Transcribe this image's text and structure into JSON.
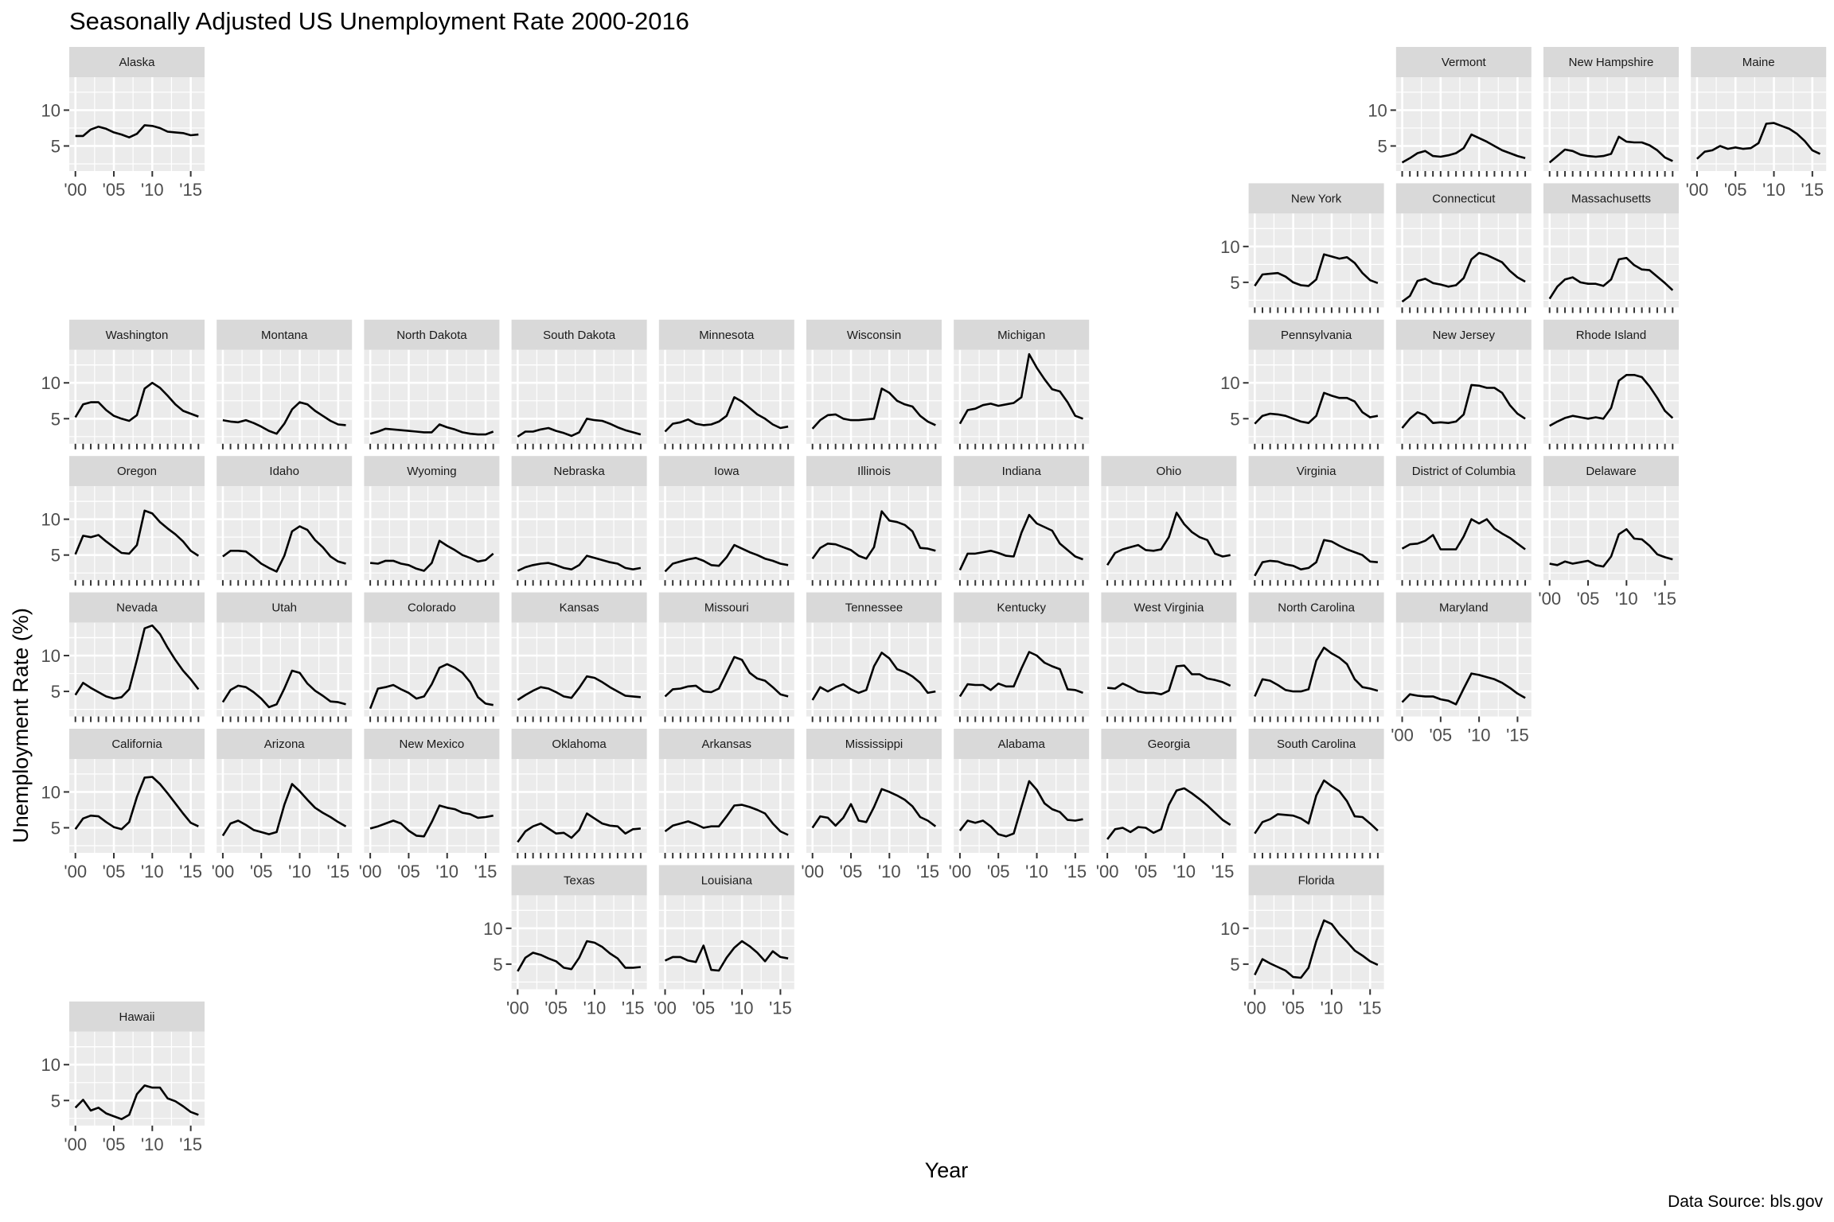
{
  "chart_data": {
    "type": "line",
    "title": "Seasonally Adjusted US Unemployment Rate 2000-2016",
    "xlabel": "Year",
    "ylabel": "Unemployment Rate (%)",
    "caption": "Data Source: bls.gov",
    "x": [
      2000,
      2001,
      2002,
      2003,
      2004,
      2005,
      2006,
      2007,
      2008,
      2009,
      2010,
      2011,
      2012,
      2013,
      2014,
      2015,
      2016
    ],
    "xlim": [
      1999.2,
      2016.8
    ],
    "ylim": [
      1.5,
      14.6
    ],
    "y_ticks": [
      5,
      10
    ],
    "y_tick_labels": [
      "5",
      "10"
    ],
    "x_ticks": [
      2000,
      2005,
      2010,
      2015
    ],
    "x_tick_labels": [
      "'00",
      "'05",
      "'10",
      "'15"
    ],
    "grid": true,
    "line_color": "#000000",
    "panel_background": "#ebebeb",
    "strip_background": "#d9d9d9",
    "series": [
      {
        "name": "Alaska",
        "row": 0,
        "col": 0,
        "values": [
          6.4,
          6.4,
          7.3,
          7.7,
          7.4,
          6.9,
          6.6,
          6.2,
          6.7,
          7.9,
          7.8,
          7.5,
          7.0,
          6.9,
          6.8,
          6.5,
          6.6
        ]
      },
      {
        "name": "Vermont",
        "row": 0,
        "col": 9,
        "values": [
          2.7,
          3.3,
          4.0,
          4.3,
          3.6,
          3.5,
          3.7,
          4.0,
          4.7,
          6.6,
          6.1,
          5.6,
          5.0,
          4.4,
          4.0,
          3.6,
          3.3
        ]
      },
      {
        "name": "New Hampshire",
        "row": 0,
        "col": 10,
        "values": [
          2.7,
          3.6,
          4.5,
          4.3,
          3.8,
          3.6,
          3.5,
          3.6,
          3.9,
          6.3,
          5.6,
          5.5,
          5.5,
          5.1,
          4.4,
          3.4,
          2.9
        ]
      },
      {
        "name": "Maine",
        "row": 0,
        "col": 11,
        "values": [
          3.2,
          4.2,
          4.4,
          5.0,
          4.6,
          4.8,
          4.6,
          4.7,
          5.4,
          8.1,
          8.2,
          7.8,
          7.4,
          6.7,
          5.7,
          4.4,
          3.9
        ]
      },
      {
        "name": "New York",
        "row": 1,
        "col": 8,
        "values": [
          4.5,
          6.1,
          6.2,
          6.3,
          5.8,
          5.0,
          4.6,
          4.5,
          5.4,
          8.9,
          8.6,
          8.3,
          8.5,
          7.7,
          6.3,
          5.3,
          4.9
        ]
      },
      {
        "name": "Connecticut",
        "row": 1,
        "col": 9,
        "values": [
          2.3,
          3.1,
          5.2,
          5.5,
          4.9,
          4.7,
          4.4,
          4.6,
          5.6,
          8.2,
          9.1,
          8.8,
          8.3,
          7.8,
          6.6,
          5.7,
          5.1
        ]
      },
      {
        "name": "Massachusetts",
        "row": 1,
        "col": 10,
        "values": [
          2.7,
          4.4,
          5.4,
          5.7,
          5.0,
          4.8,
          4.8,
          4.5,
          5.4,
          8.2,
          8.4,
          7.4,
          6.8,
          6.7,
          5.8,
          4.9,
          3.9
        ]
      },
      {
        "name": "Washington",
        "row": 2,
        "col": 0,
        "values": [
          5.2,
          7.0,
          7.3,
          7.3,
          6.2,
          5.4,
          5.0,
          4.7,
          5.5,
          9.2,
          10.0,
          9.3,
          8.2,
          7.0,
          6.1,
          5.7,
          5.3
        ]
      },
      {
        "name": "Montana",
        "row": 2,
        "col": 1,
        "values": [
          4.8,
          4.6,
          4.5,
          4.8,
          4.4,
          3.9,
          3.3,
          2.9,
          4.3,
          6.3,
          7.3,
          7.0,
          6.1,
          5.4,
          4.7,
          4.2,
          4.1
        ]
      },
      {
        "name": "North Dakota",
        "row": 2,
        "col": 2,
        "values": [
          2.9,
          3.2,
          3.6,
          3.5,
          3.4,
          3.3,
          3.2,
          3.1,
          3.1,
          4.2,
          3.8,
          3.5,
          3.1,
          2.9,
          2.8,
          2.8,
          3.2
        ]
      },
      {
        "name": "South Dakota",
        "row": 2,
        "col": 3,
        "values": [
          2.5,
          3.2,
          3.2,
          3.5,
          3.7,
          3.3,
          3.0,
          2.6,
          3.1,
          5.0,
          4.8,
          4.7,
          4.3,
          3.8,
          3.4,
          3.1,
          2.8
        ]
      },
      {
        "name": "Minnesota",
        "row": 2,
        "col": 4,
        "values": [
          3.2,
          4.3,
          4.5,
          4.9,
          4.3,
          4.1,
          4.2,
          4.6,
          5.4,
          8.0,
          7.4,
          6.5,
          5.6,
          5.0,
          4.2,
          3.7,
          3.9
        ]
      },
      {
        "name": "Wisconsin",
        "row": 2,
        "col": 5,
        "values": [
          3.6,
          4.8,
          5.5,
          5.6,
          5.0,
          4.8,
          4.8,
          4.9,
          5.0,
          9.2,
          8.6,
          7.5,
          7.0,
          6.7,
          5.4,
          4.6,
          4.1
        ]
      },
      {
        "name": "Michigan",
        "row": 2,
        "col": 6,
        "values": [
          4.3,
          6.2,
          6.4,
          6.9,
          7.1,
          6.8,
          7.0,
          7.2,
          8.0,
          14.0,
          12.1,
          10.5,
          9.1,
          8.8,
          7.3,
          5.4,
          5.0
        ]
      },
      {
        "name": "Pennsylvania",
        "row": 2,
        "col": 8,
        "values": [
          4.3,
          5.4,
          5.7,
          5.6,
          5.4,
          5.0,
          4.6,
          4.4,
          5.4,
          8.6,
          8.2,
          7.9,
          7.9,
          7.4,
          5.9,
          5.2,
          5.4
        ]
      },
      {
        "name": "New Jersey",
        "row": 2,
        "col": 9,
        "values": [
          3.7,
          5.0,
          5.9,
          5.5,
          4.4,
          4.5,
          4.4,
          4.6,
          5.6,
          9.7,
          9.6,
          9.3,
          9.3,
          8.6,
          6.9,
          5.7,
          5.0
        ]
      },
      {
        "name": "Rhode Island",
        "row": 2,
        "col": 10,
        "values": [
          4.0,
          4.6,
          5.1,
          5.4,
          5.2,
          5.0,
          5.2,
          5.0,
          6.5,
          10.3,
          11.1,
          11.1,
          10.8,
          9.5,
          7.9,
          6.1,
          5.1
        ]
      },
      {
        "name": "Oregon",
        "row": 3,
        "col": 0,
        "values": [
          5.1,
          7.7,
          7.5,
          7.8,
          6.9,
          6.1,
          5.3,
          5.2,
          6.4,
          11.2,
          10.8,
          9.6,
          8.7,
          7.9,
          6.9,
          5.6,
          4.9
        ]
      },
      {
        "name": "Idaho",
        "row": 3,
        "col": 1,
        "values": [
          4.8,
          5.6,
          5.6,
          5.5,
          4.7,
          3.8,
          3.2,
          2.7,
          4.9,
          8.3,
          9.0,
          8.5,
          7.1,
          6.1,
          4.8,
          4.1,
          3.8
        ]
      },
      {
        "name": "Wyoming",
        "row": 3,
        "col": 2,
        "values": [
          3.9,
          3.8,
          4.2,
          4.2,
          3.8,
          3.6,
          3.1,
          2.8,
          3.9,
          7.0,
          6.3,
          5.7,
          5.0,
          4.6,
          4.1,
          4.3,
          5.2
        ]
      },
      {
        "name": "Nebraska",
        "row": 3,
        "col": 3,
        "values": [
          2.8,
          3.3,
          3.6,
          3.8,
          3.9,
          3.6,
          3.2,
          3.0,
          3.6,
          4.9,
          4.6,
          4.3,
          4.0,
          3.8,
          3.2,
          3.0,
          3.2
        ]
      },
      {
        "name": "Iowa",
        "row": 3,
        "col": 4,
        "values": [
          2.7,
          3.8,
          4.1,
          4.4,
          4.6,
          4.2,
          3.6,
          3.5,
          4.7,
          6.4,
          5.9,
          5.4,
          5.0,
          4.5,
          4.2,
          3.8,
          3.6
        ]
      },
      {
        "name": "Illinois",
        "row": 3,
        "col": 5,
        "values": [
          4.5,
          6.0,
          6.6,
          6.5,
          6.1,
          5.7,
          4.9,
          4.5,
          6.1,
          11.1,
          9.8,
          9.6,
          9.2,
          8.3,
          6.0,
          5.9,
          5.6
        ]
      },
      {
        "name": "Indiana",
        "row": 3,
        "col": 6,
        "values": [
          2.9,
          5.2,
          5.2,
          5.4,
          5.6,
          5.3,
          4.9,
          4.8,
          8.1,
          10.6,
          9.4,
          8.9,
          8.4,
          6.6,
          5.7,
          4.8,
          4.4
        ]
      },
      {
        "name": "Ohio",
        "row": 3,
        "col": 7,
        "values": [
          3.6,
          5.3,
          5.8,
          6.1,
          6.4,
          5.7,
          5.6,
          5.8,
          7.5,
          10.9,
          9.3,
          8.2,
          7.5,
          7.1,
          5.2,
          4.8,
          5.0
        ]
      },
      {
        "name": "Virginia",
        "row": 3,
        "col": 8,
        "values": [
          2.1,
          4.0,
          4.2,
          4.1,
          3.7,
          3.5,
          3.0,
          3.2,
          4.0,
          7.1,
          6.9,
          6.3,
          5.8,
          5.4,
          5.0,
          4.1,
          4.0
        ]
      },
      {
        "name": "District of Columbia",
        "row": 3,
        "col": 9,
        "values": [
          5.9,
          6.5,
          6.6,
          7.0,
          7.8,
          5.8,
          5.8,
          5.8,
          7.6,
          10.0,
          9.4,
          10.0,
          8.7,
          8.0,
          7.4,
          6.6,
          5.8
        ]
      },
      {
        "name": "Delaware",
        "row": 3,
        "col": 10,
        "values": [
          3.8,
          3.6,
          4.1,
          3.8,
          4.0,
          4.2,
          3.6,
          3.4,
          4.8,
          7.9,
          8.6,
          7.3,
          7.2,
          6.3,
          5.1,
          4.7,
          4.4
        ]
      },
      {
        "name": "Nevada",
        "row": 4,
        "col": 0,
        "values": [
          4.5,
          6.2,
          5.5,
          4.9,
          4.3,
          4.0,
          4.2,
          5.3,
          9.4,
          13.8,
          14.2,
          13.0,
          11.1,
          9.4,
          7.9,
          6.7,
          5.3
        ]
      },
      {
        "name": "Utah",
        "row": 4,
        "col": 1,
        "values": [
          3.5,
          5.2,
          5.8,
          5.6,
          4.9,
          4.0,
          2.8,
          3.2,
          5.4,
          7.9,
          7.6,
          6.1,
          5.1,
          4.4,
          3.6,
          3.5,
          3.2
        ]
      },
      {
        "name": "Colorado",
        "row": 4,
        "col": 2,
        "values": [
          2.6,
          5.4,
          5.6,
          5.9,
          5.3,
          4.8,
          4.0,
          4.3,
          6.0,
          8.3,
          8.8,
          8.3,
          7.6,
          6.3,
          4.2,
          3.3,
          3.1
        ]
      },
      {
        "name": "Kansas",
        "row": 4,
        "col": 3,
        "values": [
          3.8,
          4.5,
          5.1,
          5.6,
          5.4,
          4.9,
          4.3,
          4.1,
          5.5,
          7.1,
          6.9,
          6.3,
          5.6,
          5.0,
          4.4,
          4.3,
          4.2
        ]
      },
      {
        "name": "Missouri",
        "row": 4,
        "col": 4,
        "values": [
          4.3,
          5.3,
          5.4,
          5.7,
          5.8,
          5.0,
          4.9,
          5.4,
          7.6,
          9.8,
          9.4,
          7.6,
          6.8,
          6.5,
          5.6,
          4.6,
          4.3
        ]
      },
      {
        "name": "Tennessee",
        "row": 4,
        "col": 5,
        "values": [
          3.8,
          5.6,
          5.0,
          5.6,
          6.0,
          5.3,
          4.8,
          5.2,
          8.5,
          10.4,
          9.6,
          8.1,
          7.7,
          7.1,
          6.2,
          4.8,
          5.0
        ]
      },
      {
        "name": "Kentucky",
        "row": 4,
        "col": 6,
        "values": [
          4.3,
          6.0,
          5.9,
          5.9,
          5.2,
          6.1,
          5.7,
          5.7,
          8.2,
          10.5,
          10.0,
          9.0,
          8.5,
          8.1,
          5.3,
          5.2,
          4.8
        ]
      },
      {
        "name": "West Virginia",
        "row": 4,
        "col": 7,
        "values": [
          5.5,
          5.4,
          6.1,
          5.6,
          5.0,
          4.8,
          4.8,
          4.6,
          5.1,
          8.5,
          8.6,
          7.4,
          7.4,
          6.8,
          6.6,
          6.3,
          5.8
        ]
      },
      {
        "name": "North Carolina",
        "row": 4,
        "col": 8,
        "values": [
          4.3,
          6.7,
          6.5,
          5.9,
          5.2,
          5.0,
          5.0,
          5.3,
          9.3,
          11.1,
          10.3,
          9.7,
          8.8,
          6.7,
          5.6,
          5.4,
          5.1
        ]
      },
      {
        "name": "Maryland",
        "row": 4,
        "col": 9,
        "values": [
          3.5,
          4.6,
          4.4,
          4.3,
          4.3,
          3.9,
          3.7,
          3.2,
          5.4,
          7.5,
          7.3,
          7.0,
          6.7,
          6.2,
          5.5,
          4.7,
          4.1
        ]
      },
      {
        "name": "California",
        "row": 5,
        "col": 0,
        "values": [
          4.8,
          6.3,
          6.7,
          6.6,
          5.8,
          5.1,
          4.8,
          5.8,
          9.3,
          12.0,
          12.1,
          11.1,
          9.8,
          8.4,
          7.0,
          5.7,
          5.2
        ]
      },
      {
        "name": "Arizona",
        "row": 5,
        "col": 1,
        "values": [
          3.9,
          5.6,
          6.0,
          5.4,
          4.7,
          4.4,
          4.1,
          4.4,
          8.2,
          11.1,
          10.1,
          8.9,
          7.8,
          7.1,
          6.5,
          5.8,
          5.2
        ]
      },
      {
        "name": "New Mexico",
        "row": 5,
        "col": 2,
        "values": [
          4.9,
          5.2,
          5.6,
          6.0,
          5.6,
          4.6,
          3.9,
          3.8,
          5.8,
          8.1,
          7.8,
          7.6,
          7.1,
          6.9,
          6.4,
          6.5,
          6.7
        ]
      },
      {
        "name": "Oklahoma",
        "row": 5,
        "col": 3,
        "values": [
          3.0,
          4.5,
          5.2,
          5.6,
          4.9,
          4.2,
          4.3,
          3.6,
          4.7,
          7.0,
          6.3,
          5.6,
          5.3,
          5.2,
          4.2,
          4.8,
          4.9
        ]
      },
      {
        "name": "Arkansas",
        "row": 5,
        "col": 4,
        "values": [
          4.5,
          5.3,
          5.6,
          5.9,
          5.5,
          5.0,
          5.2,
          5.2,
          6.6,
          8.1,
          8.2,
          7.9,
          7.5,
          7.0,
          5.6,
          4.5,
          4.0
        ]
      },
      {
        "name": "Mississippi",
        "row": 5,
        "col": 5,
        "values": [
          5.0,
          6.6,
          6.4,
          5.3,
          6.4,
          8.3,
          6.0,
          5.8,
          7.9,
          10.4,
          10.0,
          9.5,
          8.9,
          8.0,
          6.5,
          6.0,
          5.2
        ]
      },
      {
        "name": "Alabama",
        "row": 5,
        "col": 6,
        "values": [
          4.6,
          6.0,
          5.7,
          6.0,
          5.2,
          4.1,
          3.8,
          4.2,
          7.9,
          11.5,
          10.3,
          8.4,
          7.6,
          7.2,
          6.1,
          6.0,
          6.2
        ]
      },
      {
        "name": "Georgia",
        "row": 5,
        "col": 7,
        "values": [
          3.4,
          4.8,
          5.0,
          4.4,
          5.1,
          5.0,
          4.3,
          4.8,
          8.2,
          10.2,
          10.5,
          9.8,
          9.0,
          8.1,
          7.1,
          6.1,
          5.4
        ]
      },
      {
        "name": "South Carolina",
        "row": 5,
        "col": 8,
        "values": [
          4.2,
          5.8,
          6.2,
          6.9,
          6.8,
          6.7,
          6.3,
          5.6,
          9.5,
          11.6,
          10.8,
          10.1,
          8.7,
          6.6,
          6.5,
          5.6,
          4.6
        ]
      },
      {
        "name": "Texas",
        "row": 6,
        "col": 3,
        "values": [
          4.0,
          5.9,
          6.6,
          6.3,
          5.8,
          5.4,
          4.5,
          4.3,
          5.9,
          8.2,
          8.0,
          7.4,
          6.5,
          5.8,
          4.5,
          4.5,
          4.6
        ]
      },
      {
        "name": "Louisiana",
        "row": 6,
        "col": 4,
        "values": [
          5.5,
          6.0,
          6.0,
          5.5,
          5.3,
          7.6,
          4.2,
          4.1,
          5.9,
          7.3,
          8.2,
          7.5,
          6.6,
          5.4,
          6.8,
          6.0,
          5.8
        ]
      },
      {
        "name": "Florida",
        "row": 6,
        "col": 8,
        "values": [
          3.5,
          5.7,
          5.1,
          4.6,
          4.1,
          3.2,
          3.1,
          4.5,
          8.2,
          11.1,
          10.6,
          9.2,
          8.1,
          6.9,
          6.2,
          5.4,
          4.9
        ]
      },
      {
        "name": "Hawaii",
        "row": 7,
        "col": 0,
        "values": [
          4.0,
          5.1,
          3.6,
          4.0,
          3.2,
          2.8,
          2.4,
          3.0,
          5.9,
          7.1,
          6.8,
          6.8,
          5.3,
          4.9,
          4.2,
          3.4,
          3.0
        ]
      }
    ]
  }
}
